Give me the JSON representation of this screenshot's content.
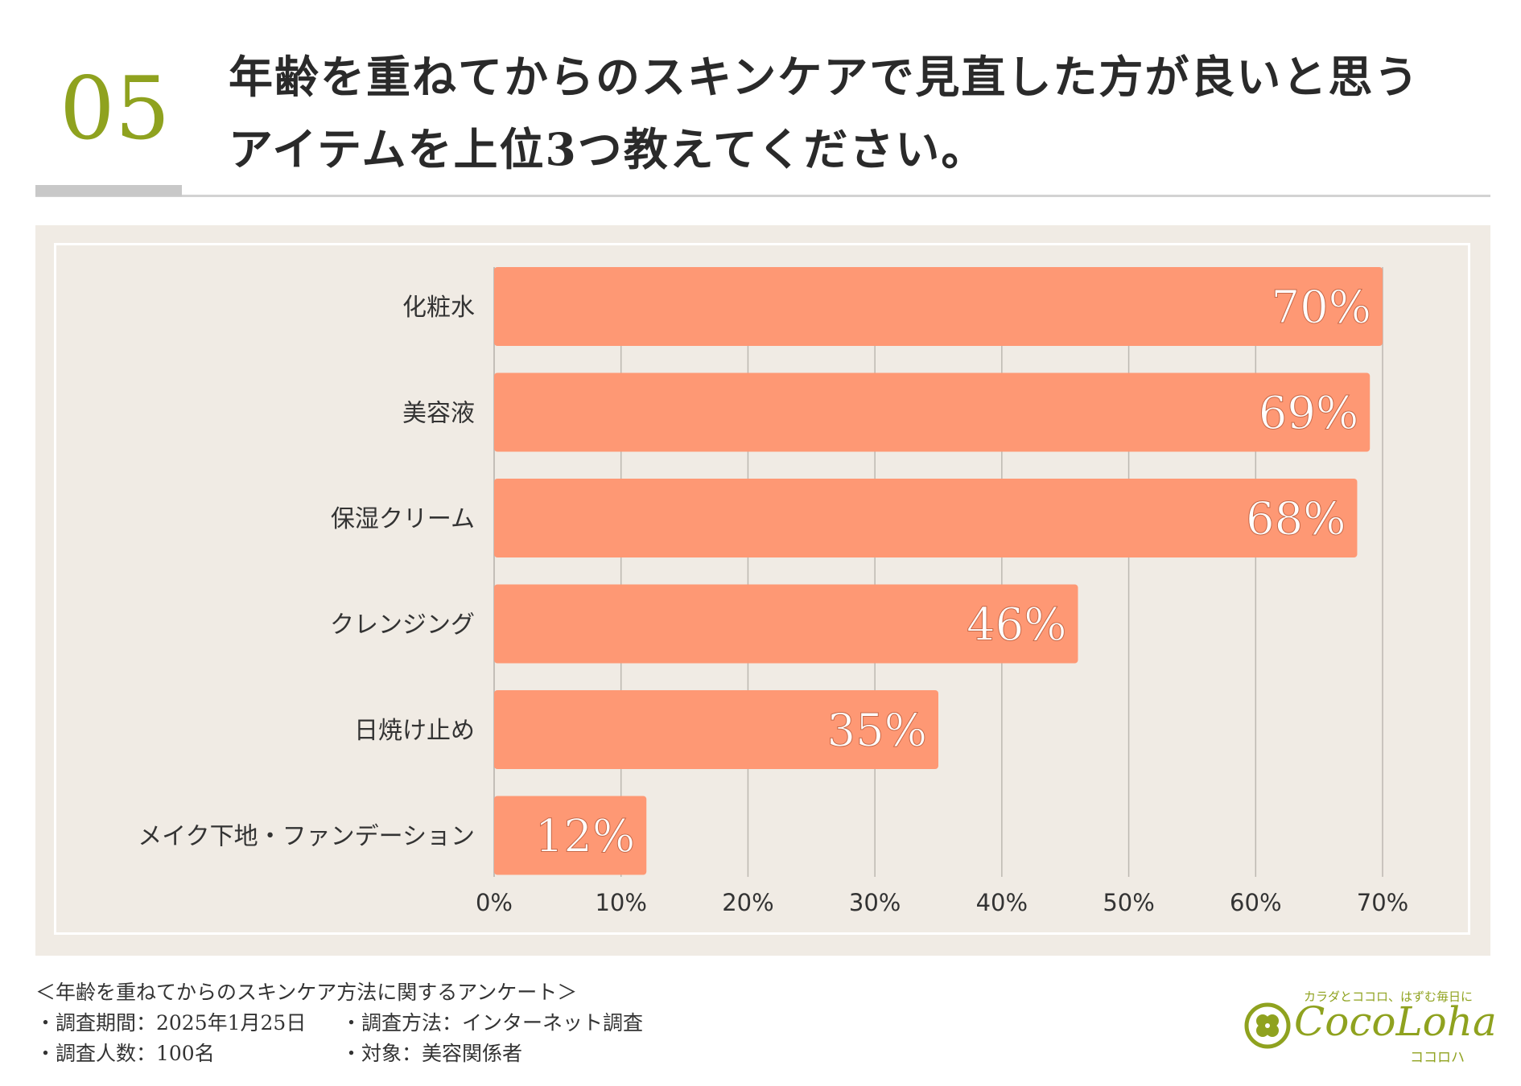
{
  "header": {
    "number": "05",
    "title_line1": "年齢を重ねてからのスキンケアで見直した方が良いと思う",
    "title_line2": "アイテムを上位3つ教えてください。"
  },
  "colors": {
    "accent": "#8fa21f",
    "bar": "#fe9874",
    "panel": "#f0ebe4",
    "grid": "#bdb8b1"
  },
  "chart_data": {
    "type": "bar",
    "orientation": "horizontal",
    "categories": [
      "化粧水",
      "美容液",
      "保湿クリーム",
      "クレンジング",
      "日焼け止め",
      "メイク下地・ファンデーション"
    ],
    "values": [
      70,
      69,
      68,
      46,
      35,
      12
    ],
    "data_labels": [
      "70%",
      "69%",
      "68%",
      "46%",
      "35%",
      "12%"
    ],
    "xlim": [
      0,
      70
    ],
    "xticks": [
      "0%",
      "10%",
      "20%",
      "30%",
      "40%",
      "50%",
      "60%",
      "70%"
    ],
    "xlabel": "",
    "ylabel": "",
    "grid": true
  },
  "footer": {
    "survey_title": "＜年齢を重ねてからのスキンケア方法に関するアンケート＞",
    "period": "・調査期間：2025年1月25日",
    "method": "・調査方法：インターネット調査",
    "respondents": "・調査人数：100名",
    "target": "・対象：美容関係者"
  },
  "logo": {
    "tagline": "カラダとココロ、はずむ毎日に",
    "name": "CocoLoha",
    "kana": "ココロハ"
  }
}
